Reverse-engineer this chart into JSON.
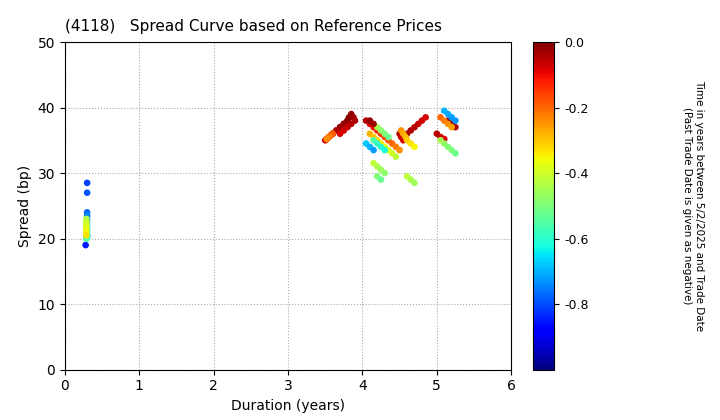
{
  "title": "(4118)   Spread Curve based on Reference Prices",
  "xlabel": "Duration (years)",
  "ylabel": "Spread (bp)",
  "xlim": [
    0,
    6
  ],
  "ylim": [
    0,
    50
  ],
  "xticks": [
    0,
    1,
    2,
    3,
    4,
    5,
    6
  ],
  "yticks": [
    0,
    10,
    20,
    30,
    40,
    50
  ],
  "colorbar_label": "Time in years between 5/2/2025 and Trade Date\n(Past Trade Date is given as negative)",
  "cbar_vmin": -1.0,
  "cbar_vmax": 0.0,
  "cbar_ticks": [
    0.0,
    -0.2,
    -0.4,
    -0.6,
    -0.8
  ],
  "points": [
    [
      0.28,
      19.0,
      -0.85
    ],
    [
      0.3,
      20.5,
      -0.83
    ],
    [
      0.3,
      28.5,
      -0.81
    ],
    [
      0.3,
      27.0,
      -0.79
    ],
    [
      0.3,
      24.0,
      -0.77
    ],
    [
      0.3,
      23.5,
      -0.75
    ],
    [
      0.3,
      23.0,
      -0.73
    ],
    [
      0.3,
      22.5,
      -0.71
    ],
    [
      0.3,
      22.0,
      -0.69
    ],
    [
      0.3,
      21.5,
      -0.67
    ],
    [
      0.3,
      21.0,
      -0.65
    ],
    [
      0.3,
      20.5,
      -0.63
    ],
    [
      0.3,
      20.3,
      -0.61
    ],
    [
      0.3,
      20.1,
      -0.59
    ],
    [
      0.29,
      20.0,
      -0.57
    ],
    [
      0.29,
      20.0,
      -0.55
    ],
    [
      0.29,
      20.5,
      -0.53
    ],
    [
      0.29,
      21.0,
      -0.51
    ],
    [
      0.29,
      21.5,
      -0.49
    ],
    [
      0.29,
      22.0,
      -0.47
    ],
    [
      0.29,
      22.5,
      -0.45
    ],
    [
      0.29,
      23.0,
      -0.43
    ],
    [
      0.29,
      22.5,
      -0.41
    ],
    [
      0.29,
      22.0,
      -0.39
    ],
    [
      0.29,
      21.5,
      -0.37
    ],
    [
      0.29,
      21.0,
      -0.35
    ],
    [
      0.29,
      20.5,
      -0.33
    ],
    [
      3.6,
      36.0,
      -0.05
    ],
    [
      3.65,
      36.5,
      -0.04
    ],
    [
      3.7,
      37.0,
      -0.03
    ],
    [
      3.75,
      37.5,
      -0.02
    ],
    [
      3.8,
      38.0,
      -0.01
    ],
    [
      3.82,
      38.5,
      0.0
    ],
    [
      3.8,
      38.0,
      -0.01
    ],
    [
      3.75,
      37.5,
      -0.02
    ],
    [
      3.7,
      37.0,
      -0.03
    ],
    [
      3.65,
      36.5,
      -0.04
    ],
    [
      3.6,
      36.0,
      -0.05
    ],
    [
      3.55,
      35.5,
      -0.06
    ],
    [
      3.52,
      35.2,
      -0.07
    ],
    [
      3.5,
      35.0,
      -0.08
    ],
    [
      3.52,
      35.2,
      -0.1
    ],
    [
      3.55,
      35.5,
      -0.12
    ],
    [
      3.58,
      35.8,
      -0.14
    ],
    [
      3.6,
      36.0,
      -0.16
    ],
    [
      3.6,
      36.0,
      -0.18
    ],
    [
      3.58,
      35.8,
      -0.2
    ],
    [
      3.55,
      35.5,
      -0.22
    ],
    [
      3.52,
      35.2,
      -0.24
    ],
    [
      3.85,
      39.0,
      -0.02
    ],
    [
      3.88,
      38.5,
      -0.03
    ],
    [
      3.9,
      38.0,
      -0.04
    ],
    [
      3.85,
      37.5,
      -0.05
    ],
    [
      3.8,
      37.0,
      -0.06
    ],
    [
      3.75,
      36.5,
      -0.07
    ],
    [
      3.7,
      36.0,
      -0.08
    ],
    [
      4.05,
      38.0,
      -0.05
    ],
    [
      4.1,
      37.5,
      -0.08
    ],
    [
      4.15,
      37.0,
      -0.1
    ],
    [
      4.2,
      36.5,
      -0.12
    ],
    [
      4.25,
      36.0,
      -0.14
    ],
    [
      4.3,
      35.5,
      -0.16
    ],
    [
      4.35,
      35.0,
      -0.18
    ],
    [
      4.4,
      34.5,
      -0.2
    ],
    [
      4.45,
      34.0,
      -0.22
    ],
    [
      4.5,
      33.5,
      -0.24
    ],
    [
      4.1,
      36.0,
      -0.28
    ],
    [
      4.15,
      35.5,
      -0.3
    ],
    [
      4.2,
      35.0,
      -0.32
    ],
    [
      4.25,
      34.5,
      -0.34
    ],
    [
      4.3,
      34.0,
      -0.36
    ],
    [
      4.35,
      33.5,
      -0.38
    ],
    [
      4.4,
      33.0,
      -0.4
    ],
    [
      4.45,
      32.5,
      -0.42
    ],
    [
      4.2,
      37.0,
      -0.45
    ],
    [
      4.25,
      36.5,
      -0.48
    ],
    [
      4.3,
      36.0,
      -0.5
    ],
    [
      4.35,
      35.5,
      -0.52
    ],
    [
      4.15,
      35.0,
      -0.55
    ],
    [
      4.2,
      34.5,
      -0.58
    ],
    [
      4.25,
      34.0,
      -0.6
    ],
    [
      4.3,
      33.5,
      -0.62
    ],
    [
      4.15,
      31.5,
      -0.42
    ],
    [
      4.2,
      31.0,
      -0.44
    ],
    [
      4.25,
      30.5,
      -0.46
    ],
    [
      4.3,
      30.0,
      -0.48
    ],
    [
      4.2,
      29.5,
      -0.5
    ],
    [
      4.25,
      29.0,
      -0.52
    ],
    [
      4.05,
      34.5,
      -0.68
    ],
    [
      4.1,
      34.0,
      -0.7
    ],
    [
      4.15,
      33.5,
      -0.72
    ],
    [
      4.1,
      38.0,
      -0.02
    ],
    [
      4.15,
      37.5,
      -0.03
    ],
    [
      4.5,
      36.0,
      -0.05
    ],
    [
      4.52,
      35.5,
      -0.07
    ],
    [
      4.55,
      35.0,
      -0.08
    ],
    [
      4.58,
      35.5,
      -0.02
    ],
    [
      4.6,
      36.0,
      -0.03
    ],
    [
      4.65,
      36.5,
      -0.04
    ],
    [
      4.7,
      37.0,
      -0.05
    ],
    [
      4.75,
      37.5,
      -0.06
    ],
    [
      4.8,
      38.0,
      -0.07
    ],
    [
      4.85,
      38.5,
      -0.08
    ],
    [
      4.52,
      36.5,
      -0.25
    ],
    [
      4.55,
      36.0,
      -0.27
    ],
    [
      4.58,
      35.5,
      -0.29
    ],
    [
      4.6,
      35.0,
      -0.31
    ],
    [
      4.65,
      34.5,
      -0.33
    ],
    [
      4.7,
      34.0,
      -0.35
    ],
    [
      4.6,
      29.5,
      -0.42
    ],
    [
      4.65,
      29.0,
      -0.44
    ],
    [
      4.7,
      28.5,
      -0.46
    ],
    [
      5.0,
      36.0,
      -0.05
    ],
    [
      5.05,
      35.5,
      -0.07
    ],
    [
      5.1,
      35.2,
      -0.08
    ],
    [
      5.15,
      38.0,
      -0.02
    ],
    [
      5.2,
      37.5,
      -0.03
    ],
    [
      5.25,
      37.0,
      -0.04
    ],
    [
      5.05,
      38.5,
      -0.2
    ],
    [
      5.1,
      38.0,
      -0.22
    ],
    [
      5.15,
      37.5,
      -0.24
    ],
    [
      5.2,
      37.0,
      -0.26
    ],
    [
      5.1,
      39.5,
      -0.7
    ],
    [
      5.15,
      39.0,
      -0.71
    ],
    [
      5.2,
      38.5,
      -0.72
    ],
    [
      5.25,
      38.0,
      -0.73
    ],
    [
      5.05,
      35.0,
      -0.45
    ],
    [
      5.1,
      34.5,
      -0.47
    ],
    [
      5.15,
      34.0,
      -0.49
    ],
    [
      5.2,
      33.5,
      -0.5
    ],
    [
      5.25,
      33.0,
      -0.52
    ]
  ],
  "background_color": "#ffffff",
  "grid_color": "#aaaaaa",
  "cmap": "jet"
}
